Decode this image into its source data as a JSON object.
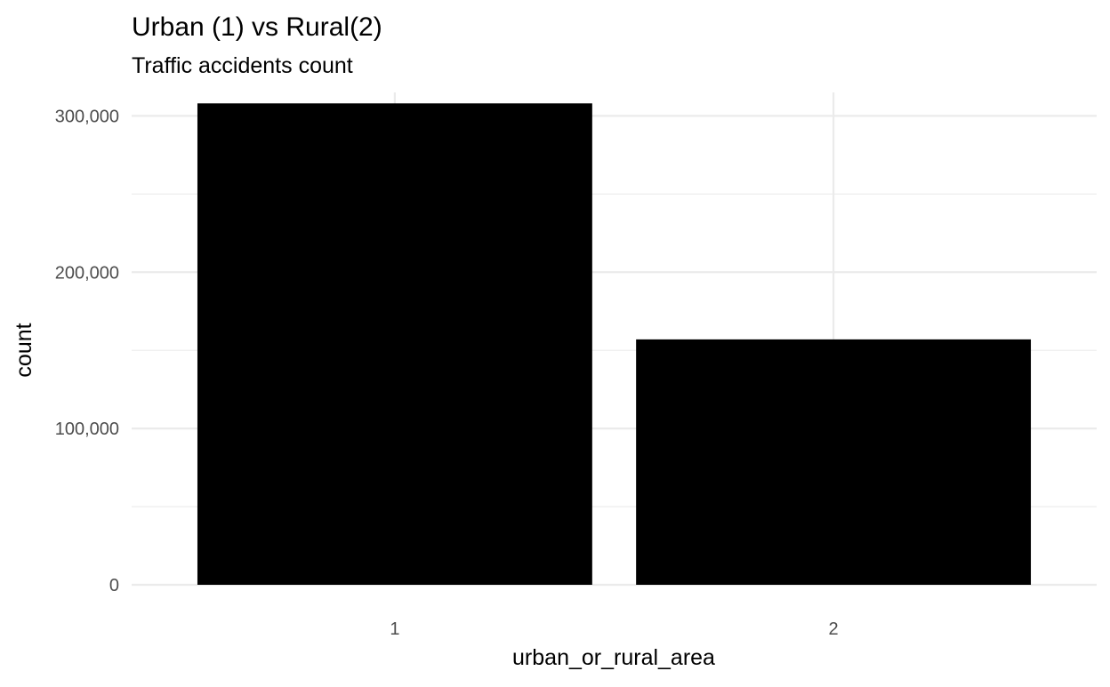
{
  "chart_data": {
    "type": "bar",
    "title": "Urban (1) vs Rural(2)",
    "subtitle": "Traffic accidents count",
    "xlabel": "urban_or_rural_area",
    "ylabel": "count",
    "categories": [
      "1",
      "2"
    ],
    "values": [
      308000,
      157000
    ],
    "ylim": [
      0,
      315000
    ],
    "yticks": [
      0,
      100000,
      200000,
      300000
    ],
    "ytick_labels": [
      "0",
      "100,000",
      "200,000",
      "300,000"
    ],
    "minor_yticks": [
      50000,
      150000,
      250000
    ],
    "grid": true,
    "legend": "none",
    "colors": {
      "bar": "#000000",
      "grid": "#ebebeb",
      "tick_text": "#4d4d4d",
      "background": "#ffffff"
    }
  }
}
